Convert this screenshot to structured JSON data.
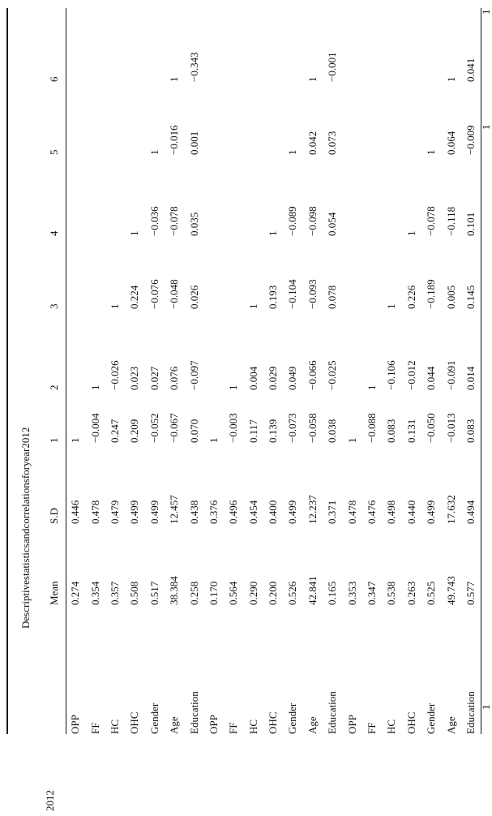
{
  "side_label": "2012",
  "caption": "Descriptivestatisticsandcorrelationsforyear2012",
  "edge_marks": [
    "1",
    "1",
    "1"
  ],
  "table": {
    "header": [
      "Mean",
      "S.D",
      "1",
      "2",
      "3",
      "4",
      "5",
      "6"
    ],
    "rows": [
      {
        "label": "OPP",
        "values": [
          "0.274",
          "0.446",
          "1"
        ]
      },
      {
        "label": "FF",
        "values": [
          "0.354",
          "0.478",
          "−0.004",
          "1"
        ]
      },
      {
        "label": "HC",
        "values": [
          "0.357",
          "0.479",
          "0.247",
          "−0.026",
          "1"
        ]
      },
      {
        "label": "OHC",
        "values": [
          "0.508",
          "0.499",
          "0.209",
          "0.023",
          "0.224",
          "1"
        ]
      },
      {
        "label": "Gender",
        "values": [
          "0.517",
          "0.499",
          "−0.052",
          "0.027",
          "−0.076",
          "−0.036",
          "1"
        ]
      },
      {
        "label": "Age",
        "values": [
          "38.384",
          "12.457",
          "−0.067",
          "0.076",
          "−0.048",
          "−0.078",
          "−0.016",
          "1"
        ]
      },
      {
        "label": "Education",
        "values": [
          "0.258",
          "0.438",
          "0.070",
          "−0.097",
          "0.026",
          "0.035",
          "0.001",
          "−0.343"
        ]
      },
      {
        "label": "OPP",
        "values": [
          "0.170",
          "0.376",
          "1"
        ]
      },
      {
        "label": "FF",
        "values": [
          "0.564",
          "0.496",
          "−0.003",
          "1"
        ]
      },
      {
        "label": "HC",
        "values": [
          "0.290",
          "0.454",
          "0.117",
          "0.004",
          "1"
        ]
      },
      {
        "label": "OHC",
        "values": [
          "0.200",
          "0.400",
          "0.139",
          "0.029",
          "0.193",
          "1"
        ]
      },
      {
        "label": "Gender",
        "values": [
          "0.526",
          "0.499",
          "−0.073",
          "0.049",
          "−0.104",
          "−0.089",
          "1"
        ]
      },
      {
        "label": "Age",
        "values": [
          "42.841",
          "12.237",
          "−0.058",
          "−0.066",
          "−0.093",
          "−0.098",
          "0.042",
          "1"
        ]
      },
      {
        "label": "Education",
        "values": [
          "0.165",
          "0.371",
          "0.038",
          "−0.025",
          "0.078",
          "0.054",
          "0.073",
          "−0.001"
        ]
      },
      {
        "label": "OPP",
        "values": [
          "0.353",
          "0.478",
          "1"
        ]
      },
      {
        "label": "FF",
        "values": [
          "0.347",
          "0.476",
          "−0.088",
          "1"
        ]
      },
      {
        "label": "HC",
        "values": [
          "0.538",
          "0.498",
          "0.083",
          "−0.106",
          "1"
        ]
      },
      {
        "label": "OHC",
        "values": [
          "0.263",
          "0.440",
          "0.131",
          "−0.012",
          "0.226",
          "1"
        ]
      },
      {
        "label": "Gender",
        "values": [
          "0.525",
          "0.499",
          "−0.050",
          "0.044",
          "−0.189",
          "−0.078",
          "1"
        ]
      },
      {
        "label": "Age",
        "values": [
          "49.743",
          "17.632",
          "−0.013",
          "−0.091",
          "0.005",
          "−0.118",
          "0.064",
          "1"
        ]
      },
      {
        "label": "Education",
        "values": [
          "0.577",
          "0.494",
          "0.083",
          "0.014",
          "0.145",
          "0.101",
          "−0.009",
          "0.041"
        ]
      }
    ]
  }
}
